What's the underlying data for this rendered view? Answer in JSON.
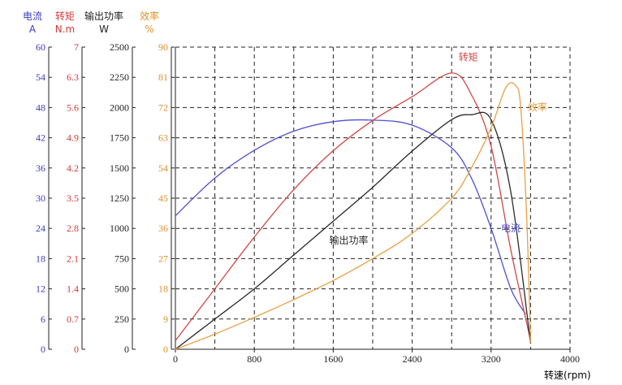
{
  "chart_data": {
    "type": "line",
    "x_axis": {
      "label": "转速(rpm)",
      "range": [
        0,
        4000
      ],
      "ticks": [
        0,
        800,
        1600,
        2400,
        3200,
        4000
      ]
    },
    "grid": true,
    "y_axes": [
      {
        "key": "current",
        "title": "电流",
        "unit": "A",
        "color": "#3b3bc4",
        "range": [
          0,
          60
        ],
        "ticks": [
          "0",
          "6",
          "12",
          "18",
          "24",
          "30",
          "36",
          "42",
          "48",
          "54",
          "60"
        ]
      },
      {
        "key": "torque",
        "title": "转矩",
        "unit": "N.m",
        "color": "#d43a3a",
        "range": [
          0,
          7
        ],
        "ticks": [
          "0",
          "0.7",
          "1.4",
          "2.1",
          "2.8",
          "3.5",
          "4.2",
          "4.9",
          "5.6",
          "6.3",
          "7"
        ]
      },
      {
        "key": "power",
        "title": "输出功率",
        "unit": "W",
        "color": "#222222",
        "range": [
          0,
          2500
        ],
        "ticks": [
          "0",
          "250",
          "500",
          "750",
          "1000",
          "1250",
          "1500",
          "1750",
          "2000",
          "2250",
          "2500"
        ]
      },
      {
        "key": "efficiency",
        "title": "效率",
        "unit": "%",
        "color": "#e0902a",
        "range": [
          0,
          90
        ],
        "ticks": [
          "0",
          "9",
          "18",
          "27",
          "36",
          "45",
          "54",
          "63",
          "72",
          "81",
          "90"
        ]
      }
    ],
    "series": [
      {
        "name": "电流",
        "axis": "current",
        "color": "#5050d0",
        "x": [
          0,
          400,
          800,
          1200,
          1600,
          2000,
          2400,
          2800,
          3000,
          3200,
          3400,
          3550
        ],
        "y": [
          26.5,
          34.0,
          39.5,
          43.3,
          45.2,
          45.5,
          44.5,
          40.0,
          34.0,
          24.0,
          12.0,
          7.0
        ]
      },
      {
        "name": "转矩",
        "axis": "torque",
        "color": "#d04848",
        "x": [
          0,
          400,
          800,
          1200,
          1600,
          2000,
          2400,
          2800,
          3000,
          3200,
          3400,
          3600
        ],
        "y": [
          0.2,
          1.4,
          2.6,
          3.7,
          4.6,
          5.3,
          5.85,
          6.4,
          5.9,
          4.7,
          2.3,
          0.2
        ]
      },
      {
        "name": "输出功率",
        "axis": "power",
        "color": "#2a2a2a",
        "x": [
          0,
          400,
          800,
          1200,
          1600,
          2000,
          2400,
          2800,
          3000,
          3200,
          3400,
          3600
        ],
        "y": [
          0,
          250,
          500,
          780,
          1060,
          1340,
          1640,
          1900,
          1940,
          1900,
          1300,
          50
        ]
      },
      {
        "name": "效率",
        "axis": "efficiency",
        "color": "#e8a040",
        "x": [
          0,
          400,
          800,
          1200,
          1600,
          2000,
          2400,
          2800,
          3000,
          3200,
          3350,
          3450,
          3500,
          3560,
          3600
        ],
        "y": [
          0,
          4.5,
          9.5,
          14.8,
          20.5,
          27.0,
          34.5,
          45.0,
          54.0,
          66.0,
          78.0,
          78.5,
          72.0,
          40.0,
          2.0
        ]
      }
    ],
    "annotations": [
      {
        "text": "转矩",
        "series": "转矩",
        "x": 2870,
        "y_frac": 0.955
      },
      {
        "text": "效率",
        "series": "效率",
        "x": 3570,
        "y_frac": 0.79
      },
      {
        "text": "电流",
        "series": "电流",
        "x": 3300,
        "y_frac": 0.39
      },
      {
        "text": "输出功率",
        "series": "输出功率",
        "x": 1560,
        "y_frac": 0.35
      }
    ]
  }
}
